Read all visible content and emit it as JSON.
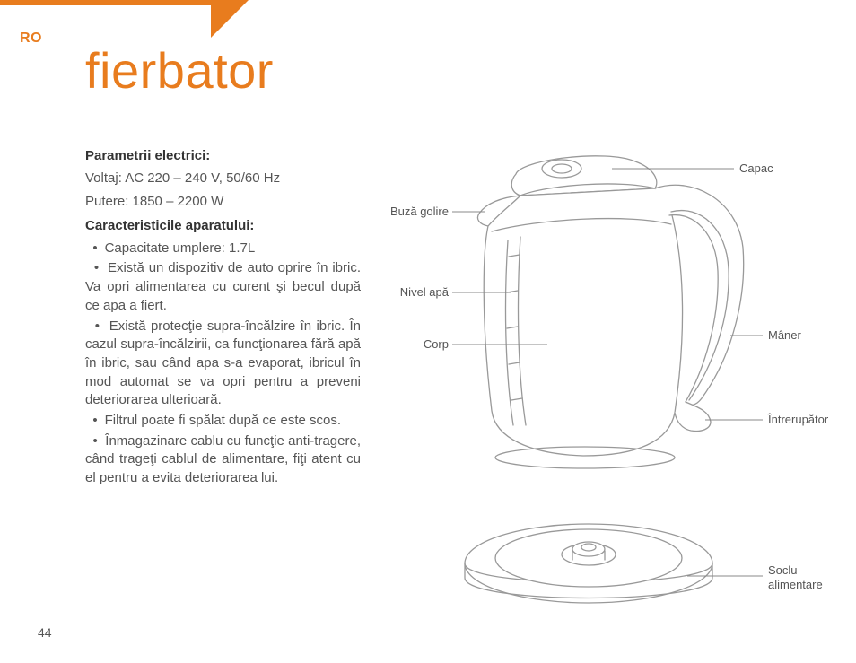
{
  "brand_color": "#e87c1e",
  "lang_tag": "RO",
  "title": "fierbator",
  "page_number": "44",
  "specs": {
    "heading_electrical": "Parametrii electrici:",
    "voltage_line": "Voltaj: AC 220 – 240 V, 50/60 Hz",
    "power_line": "Putere: 1850 – 2200 W",
    "heading_features": "Caracteristicile aparatului:",
    "bullets": [
      "Capacitate umplere: 1.7L",
      "Există un dispozitiv de auto oprire în ibric. Va opri alimentarea cu curent şi becul după ce apa a fiert.",
      "Există protecţie supra-încălzire în ibric. În cazul supra-încălzirii, ca funcţionarea fără apă în ibric, sau când apa s-a evaporat, ibricul în mod automat se va opri pentru a preveni deteriorarea ulterioară.",
      "Filtrul poate fi spălat după ce este scos.",
      "Înmagazinare cablu cu funcţie anti-tragere, când trageţi cablul de alimentare, fiţi atent cu el pentru a evita deteriorarea lui."
    ]
  },
  "diagram": {
    "labels": {
      "spout": "Buză golire",
      "water_level": "Nivel apă",
      "body": "Corp",
      "lid": "Capac",
      "handle": "Mâner",
      "switch": "Întrerupător",
      "base": "Soclu alimentare"
    },
    "style": {
      "line_color": "#999999",
      "leader_color": "#888888",
      "label_color": "#555555",
      "label_fontsize_pt": 10
    }
  }
}
